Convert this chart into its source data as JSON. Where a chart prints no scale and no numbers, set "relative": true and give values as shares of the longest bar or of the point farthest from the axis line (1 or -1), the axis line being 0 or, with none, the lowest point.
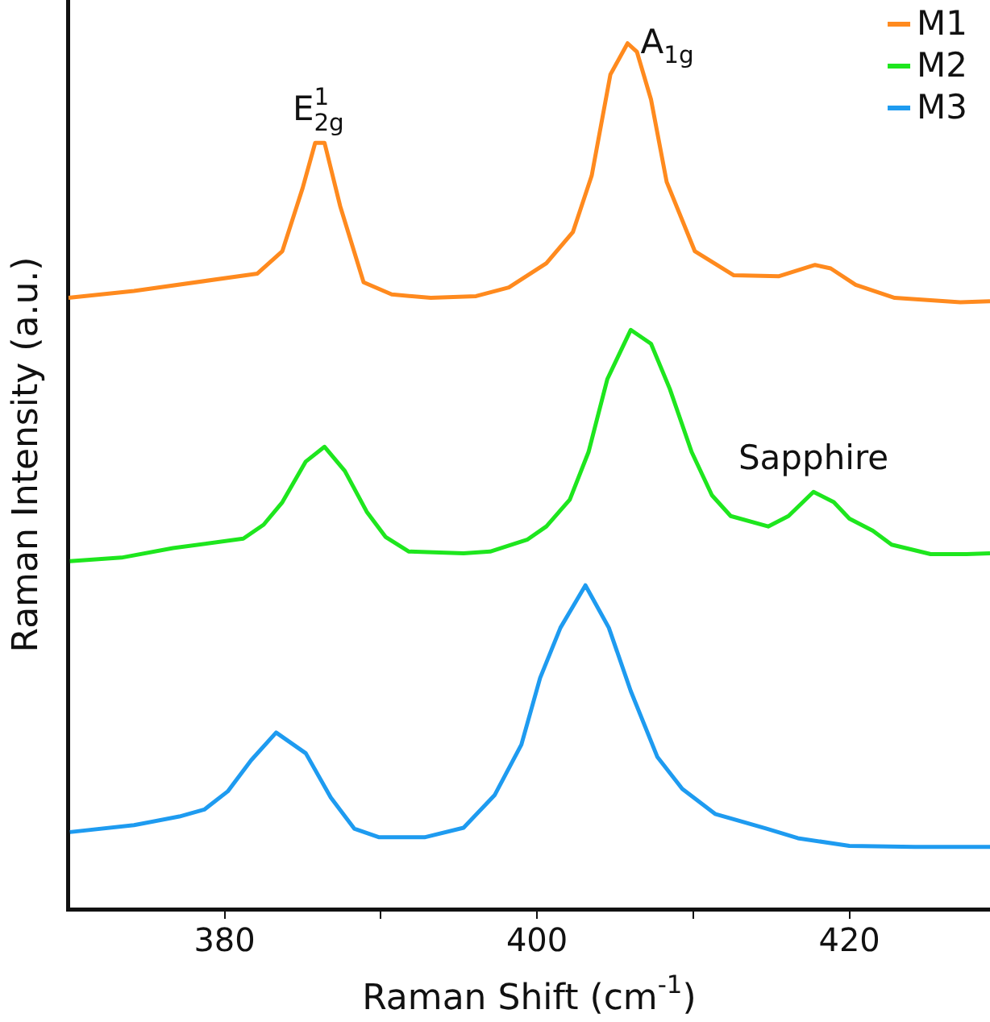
{
  "chart_data": {
    "type": "line",
    "relative": true,
    "xlabel": "Raman Shift (cm$^{-1}$)",
    "ylabel": "Raman Intensity (a.u.)",
    "xlim": [
      370,
      429
    ],
    "xticks": [
      380,
      {
        "value": 390,
        "label": null
      },
      400,
      {
        "value": 410,
        "label": null
      },
      420
    ],
    "legend": "top right",
    "grid": false,
    "marker": "none",
    "line_style": "solid",
    "annotations": [
      {
        "text": "E$^{1}$$_{2g}$",
        "x": 386,
        "y": 0.885
      },
      {
        "text": "A$_{1g}$",
        "x": 405.8,
        "y": 1.0
      },
      {
        "text": "Sapphire",
        "x": 417.7,
        "y": 0.482
      }
    ],
    "series": [
      {
        "name": "M1",
        "color": "#ff8a1e",
        "x": [
          370,
          374.2,
          382.1,
          383.7,
          385,
          385.8,
          386.4,
          387.4,
          388.9,
          390.7,
          393.2,
          396.1,
          398.2,
          400.6,
          402.3,
          403.5,
          404.7,
          405.8,
          406.4,
          407.3,
          408.3,
          410.1,
          412.6,
          415.5,
          417.8,
          418.8,
          420.4,
          422.9,
          427.1,
          429
        ],
        "values": [
          0.706,
          0.714,
          0.734,
          0.76,
          0.833,
          0.885,
          0.885,
          0.812,
          0.724,
          0.71,
          0.706,
          0.708,
          0.718,
          0.746,
          0.782,
          0.847,
          0.964,
          1.0,
          0.99,
          0.935,
          0.84,
          0.76,
          0.732,
          0.731,
          0.744,
          0.74,
          0.721,
          0.706,
          0.701,
          0.702
        ]
      },
      {
        "name": "M2",
        "color": "#1ee61e",
        "x": [
          370.1,
          373.4,
          376.7,
          381.2,
          382.5,
          383.7,
          385.2,
          386.4,
          387.7,
          389.1,
          390.3,
          391.8,
          395.3,
          397,
          399.4,
          400.6,
          402.1,
          403.3,
          404.5,
          406,
          407.3,
          408.5,
          409.9,
          411.2,
          412.4,
          414.8,
          416.1,
          417.7,
          419,
          420,
          421.5,
          422.7,
          425.2,
          427.5,
          429
        ],
        "values": [
          0.402,
          0.406,
          0.417,
          0.428,
          0.444,
          0.47,
          0.517,
          0.534,
          0.506,
          0.459,
          0.43,
          0.413,
          0.411,
          0.413,
          0.427,
          0.442,
          0.473,
          0.528,
          0.612,
          0.669,
          0.653,
          0.601,
          0.528,
          0.478,
          0.454,
          0.442,
          0.454,
          0.482,
          0.47,
          0.451,
          0.437,
          0.421,
          0.41,
          0.41,
          0.411
        ]
      },
      {
        "name": "M3",
        "color": "#1e9bf0",
        "x": [
          370.1,
          374.2,
          377.1,
          378.7,
          380.2,
          381.7,
          383.3,
          385.2,
          386.8,
          388.3,
          389.9,
          392.8,
          395.3,
          397.3,
          399,
          400.2,
          401.5,
          403.1,
          404.6,
          406,
          407.7,
          409.3,
          411.4,
          414.7,
          416.7,
          420,
          424.2,
          429
        ],
        "values": [
          0.089,
          0.097,
          0.107,
          0.115,
          0.136,
          0.172,
          0.204,
          0.18,
          0.129,
          0.093,
          0.083,
          0.083,
          0.094,
          0.132,
          0.19,
          0.267,
          0.325,
          0.374,
          0.325,
          0.252,
          0.176,
          0.139,
          0.11,
          0.093,
          0.082,
          0.073,
          0.072,
          0.072
        ]
      }
    ]
  }
}
